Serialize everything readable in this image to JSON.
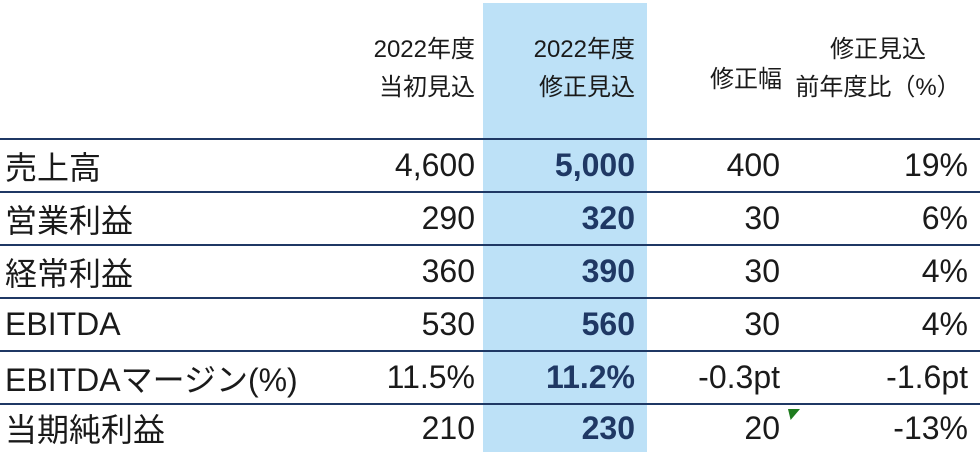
{
  "table": {
    "header": {
      "col_initial_line1": "2022年度",
      "col_initial_line2": "当初見込",
      "col_revised_line1": "2022年度",
      "col_revised_line2": "修正見込",
      "col_change": "修正幅",
      "col_yoy_line1": "修正見込",
      "col_yoy_line2": "前年度比（%）"
    },
    "rows": [
      {
        "label": "売上高",
        "initial": "4,600",
        "revised": "5,000",
        "change": "400",
        "yoy": "19%"
      },
      {
        "label": "営業利益",
        "initial": "290",
        "revised": "320",
        "change": "30",
        "yoy": "6%"
      },
      {
        "label": "経常利益",
        "initial": "360",
        "revised": "390",
        "change": "30",
        "yoy": "4%"
      },
      {
        "label": "EBITDA",
        "initial": "530",
        "revised": "560",
        "change": "30",
        "yoy": "4%"
      },
      {
        "label": "EBITDAマージン(%)",
        "initial": "11.5%",
        "revised": "11.2%",
        "change": "-0.3pt",
        "yoy": "-1.6pt"
      },
      {
        "label": "当期純利益",
        "initial": "210",
        "revised": "230",
        "change": "20",
        "yoy": "-13%"
      }
    ]
  },
  "colors": {
    "highlight_column_bg": "#bde1f7",
    "navy_accent": "#1f3864",
    "body_text": "#1a1a1a",
    "error_marker_green": "#1e7b1e"
  },
  "chart_data": {
    "type": "table",
    "columns": [
      "",
      "2022年度 当初見込",
      "2022年度 修正見込",
      "修正幅",
      "修正見込 前年度比（%）"
    ],
    "rows": [
      [
        "売上高",
        "4,600",
        "5,000",
        "400",
        "19%"
      ],
      [
        "営業利益",
        "290",
        "320",
        "30",
        "6%"
      ],
      [
        "経常利益",
        "360",
        "390",
        "30",
        "4%"
      ],
      [
        "EBITDA",
        "530",
        "560",
        "30",
        "4%"
      ],
      [
        "EBITDAマージン(%)",
        "11.5%",
        "11.2%",
        "-0.3pt",
        "-1.6pt"
      ],
      [
        "当期純利益",
        "210",
        "230",
        "20",
        "-13%"
      ]
    ],
    "notes": "修正見込 column highlighted light blue with bold navy values; green error-indicator triangle beside 当期純利益 修正幅 value 20"
  }
}
